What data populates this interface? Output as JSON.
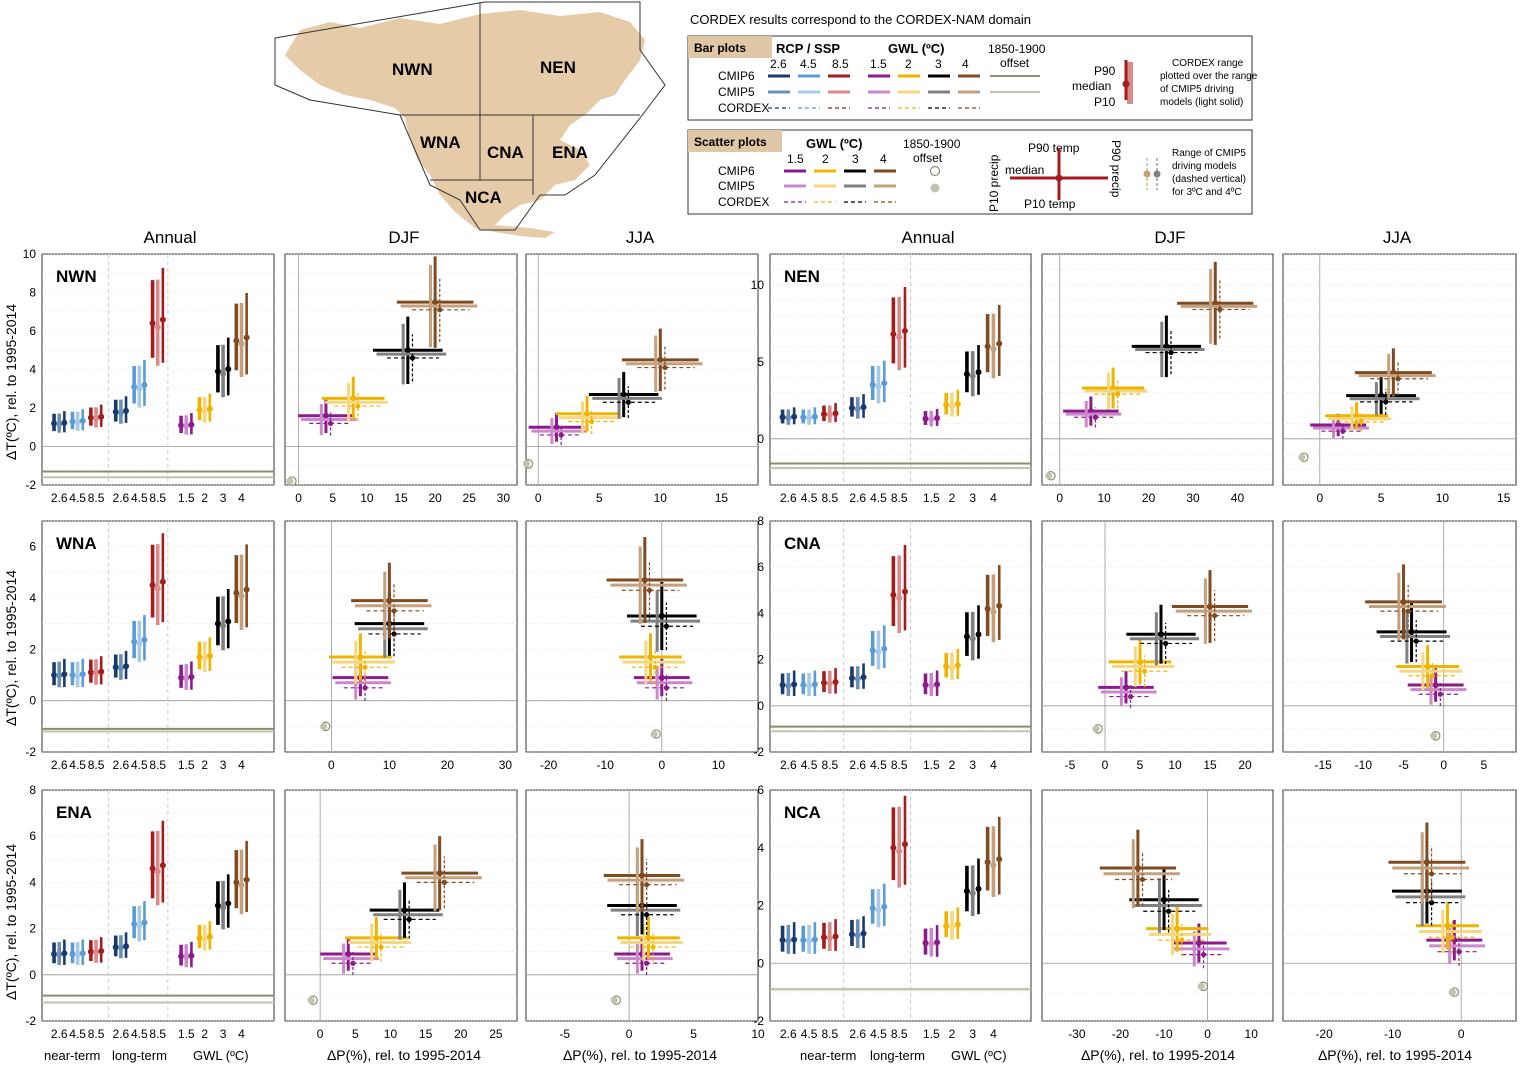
{
  "map": {
    "regions": [
      "NWN",
      "NEN",
      "WNA",
      "CNA",
      "ENA",
      "NCA"
    ],
    "land_color": "#e6cba8"
  },
  "legend": {
    "caption": "CORDEX results correspond to the CORDEX-NAM domain",
    "bar": {
      "tab": "Bar plots",
      "rcp_title": "RCP / SSP",
      "rcp_values": [
        "2.6",
        "4.5",
        "8.5"
      ],
      "gwl_title": "GWL (ºC)",
      "gwl_values": [
        "1.5",
        "2",
        "3",
        "4"
      ],
      "offset_label": [
        "1850-1900",
        "offset"
      ],
      "rows": [
        "CMIP6",
        "CMIP5",
        "CORDEX"
      ],
      "p90": "P90",
      "median": "median",
      "p10": "P10",
      "note": [
        "CORDEX range",
        "plotted over the range",
        "of CMIP5 driving",
        "models (light solid)"
      ]
    },
    "scatter": {
      "tab": "Scatter plots",
      "gwl_title": "GWL (ºC)",
      "gwl_values": [
        "1.5",
        "2",
        "3",
        "4"
      ],
      "offset_label": [
        "1850-1900",
        "offset"
      ],
      "rows": [
        "CMIP6",
        "CMIP5",
        "CORDEX"
      ],
      "p90_temp": "P90 temp",
      "median": "median",
      "p10_temp": "P10 temp",
      "p10_precip": "P10 precip",
      "p90_precip": "P90 precip",
      "note": [
        "Range of CMIP5",
        "driving models",
        "(dashed vertical)",
        "for 3ºC and 4ºC"
      ]
    }
  },
  "colors": {
    "rcp26_cmip6": "#1a3a6b",
    "rcp26_cmip5": "#6a8fb8",
    "rcp45_cmip6": "#5b9bd5",
    "rcp45_cmip5": "#a8c8e8",
    "rcp85_cmip6": "#a51c1c",
    "rcp85_cmip5": "#d98a8a",
    "gwl15_cmip6": "#8b1a8b",
    "gwl15_cmip5": "#cc88cc",
    "gwl2_cmip6": "#f0b400",
    "gwl2_cmip5": "#f6d680",
    "gwl3_cmip6": "#000000",
    "gwl3_cmip5": "#808080",
    "gwl4_cmip6": "#7f4b22",
    "gwl4_cmip5": "#c4a07c",
    "offset_cmip6": "#8a8d6e",
    "offset_cmip5": "#c2c4ad"
  },
  "column_titles": [
    "Annual",
    "DJF",
    "JJA",
    "Annual",
    "DJF",
    "JJA"
  ],
  "bar_x_ticks": [
    "2.6",
    "4.5",
    "8.5",
    "2.6",
    "4.5",
    "8.5",
    "1.5",
    "2",
    "3",
    "4"
  ],
  "bar_x_bottom": [
    "near-term",
    "long-term",
    "GWL (ºC)"
  ],
  "y_axis_label": "ΔT(ºC), rel. to 1995-2014",
  "x_axis_label": "ΔP(%), rel. to 1995-2014",
  "chart_data": [
    {
      "type": "bar",
      "region": "NWN",
      "season": "Annual",
      "ylim": [
        -2,
        10
      ],
      "yticks": [
        -2,
        0,
        2,
        4,
        6,
        8,
        10
      ],
      "medians": [
        1.2,
        1.3,
        1.5,
        1.8,
        3.1,
        6.4,
        1.1,
        1.9,
        3.9,
        5.5
      ],
      "offset": [
        -1.3,
        -1.6
      ]
    },
    {
      "type": "scatter",
      "region": "NWN",
      "season": "DJF",
      "xlim": [
        -2,
        32
      ],
      "xticks": [
        0,
        5,
        10,
        15,
        20,
        25,
        30
      ],
      "ylim": [
        -2,
        10
      ],
      "points": [
        {
          "gwl": "1.5",
          "x": 4,
          "y": 1.6
        },
        {
          "gwl": "2",
          "x": 8,
          "y": 2.5
        },
        {
          "gwl": "3",
          "x": 16,
          "y": 5.0
        },
        {
          "gwl": "4",
          "x": 20,
          "y": 7.5
        }
      ],
      "offset": {
        "x": -1,
        "y": -1.8
      }
    },
    {
      "type": "scatter",
      "region": "NWN",
      "season": "JJA",
      "xlim": [
        -1,
        18
      ],
      "xticks": [
        0,
        5,
        10,
        15
      ],
      "ylim": [
        -2,
        10
      ],
      "points": [
        {
          "gwl": "1.5",
          "x": 1.5,
          "y": 1.0
        },
        {
          "gwl": "2",
          "x": 4,
          "y": 1.7
        },
        {
          "gwl": "3",
          "x": 7,
          "y": 2.7
        },
        {
          "gwl": "4",
          "x": 10,
          "y": 4.5
        }
      ],
      "offset": {
        "x": -0.8,
        "y": -0.9
      }
    },
    {
      "type": "bar",
      "region": "NEN",
      "season": "Annual",
      "ylim": [
        -3,
        12
      ],
      "yticks": [
        0,
        5,
        10
      ],
      "medians": [
        1.4,
        1.4,
        1.6,
        2.0,
        3.5,
        6.8,
        1.3,
        2.2,
        4.2,
        6.0
      ],
      "offset": [
        -1.6,
        -1.9
      ]
    },
    {
      "type": "scatter",
      "region": "NEN",
      "season": "DJF",
      "xlim": [
        -4,
        48
      ],
      "xticks": [
        0,
        10,
        20,
        30,
        40
      ],
      "ylim": [
        -3,
        12
      ],
      "points": [
        {
          "gwl": "1.5",
          "x": 7,
          "y": 1.8
        },
        {
          "gwl": "2",
          "x": 12,
          "y": 3.3
        },
        {
          "gwl": "3",
          "x": 24,
          "y": 6.0
        },
        {
          "gwl": "4",
          "x": 35,
          "y": 8.8
        }
      ],
      "offset": {
        "x": -2,
        "y": -2.4
      }
    },
    {
      "type": "scatter",
      "region": "NEN",
      "season": "JJA",
      "xlim": [
        -3,
        16
      ],
      "xticks": [
        0,
        5,
        10,
        15
      ],
      "ylim": [
        -3,
        12
      ],
      "points": [
        {
          "gwl": "1.5",
          "x": 1.5,
          "y": 0.9
        },
        {
          "gwl": "2",
          "x": 3,
          "y": 1.5
        },
        {
          "gwl": "3",
          "x": 5,
          "y": 2.8
        },
        {
          "gwl": "4",
          "x": 6,
          "y": 4.3
        }
      ],
      "offset": {
        "x": -1.3,
        "y": -1.2
      }
    },
    {
      "type": "bar",
      "region": "WNA",
      "season": "Annual",
      "ylim": [
        -2,
        7
      ],
      "yticks": [
        -2,
        0,
        2,
        4,
        6
      ],
      "medians": [
        1.0,
        1.0,
        1.1,
        1.3,
        2.3,
        4.5,
        0.9,
        1.7,
        3.0,
        4.2
      ],
      "offset": [
        -1.1,
        -1.2
      ]
    },
    {
      "type": "scatter",
      "region": "WNA",
      "season": "DJF",
      "xlim": [
        -8,
        32
      ],
      "xticks": [
        0,
        10,
        20,
        30
      ],
      "ylim": [
        -2,
        7
      ],
      "points": [
        {
          "gwl": "1.5",
          "x": 5,
          "y": 0.9
        },
        {
          "gwl": "2",
          "x": 5,
          "y": 1.7
        },
        {
          "gwl": "3",
          "x": 10,
          "y": 3.0
        },
        {
          "gwl": "4",
          "x": 10,
          "y": 3.9
        }
      ],
      "offset": {
        "x": -1,
        "y": -1.0
      }
    },
    {
      "type": "scatter",
      "region": "WNA",
      "season": "JJA",
      "xlim": [
        -24,
        17
      ],
      "xticks": [
        -20,
        -10,
        0,
        10
      ],
      "ylim": [
        -2,
        7
      ],
      "points": [
        {
          "gwl": "1.5",
          "x": 0,
          "y": 0.9
        },
        {
          "gwl": "2",
          "x": -2,
          "y": 1.7
        },
        {
          "gwl": "3",
          "x": 0,
          "y": 3.3
        },
        {
          "gwl": "4",
          "x": -3,
          "y": 4.7
        }
      ],
      "offset": {
        "x": -1,
        "y": -1.3
      }
    },
    {
      "type": "bar",
      "region": "CNA",
      "season": "Annual",
      "ylim": [
        -2,
        8
      ],
      "yticks": [
        -2,
        0,
        2,
        4,
        6,
        8
      ],
      "medians": [
        0.9,
        0.9,
        1.0,
        1.2,
        2.4,
        4.8,
        0.9,
        1.7,
        3.0,
        4.2
      ],
      "offset": [
        -0.9,
        -1.1
      ]
    },
    {
      "type": "scatter",
      "region": "CNA",
      "season": "DJF",
      "xlim": [
        -9,
        24
      ],
      "xticks": [
        -5,
        0,
        5,
        10,
        15,
        20
      ],
      "ylim": [
        -2,
        8
      ],
      "points": [
        {
          "gwl": "1.5",
          "x": 3,
          "y": 0.8
        },
        {
          "gwl": "2",
          "x": 5,
          "y": 1.9
        },
        {
          "gwl": "3",
          "x": 8,
          "y": 3.1
        },
        {
          "gwl": "4",
          "x": 15,
          "y": 4.3
        }
      ],
      "offset": {
        "x": -1,
        "y": -1.0
      }
    },
    {
      "type": "scatter",
      "region": "CNA",
      "season": "JJA",
      "xlim": [
        -20,
        9
      ],
      "xticks": [
        -15,
        -10,
        -5,
        0,
        5
      ],
      "ylim": [
        -2,
        8
      ],
      "points": [
        {
          "gwl": "1.5",
          "x": -1,
          "y": 0.9
        },
        {
          "gwl": "2",
          "x": -2,
          "y": 1.7
        },
        {
          "gwl": "3",
          "x": -4,
          "y": 3.2
        },
        {
          "gwl": "4",
          "x": -5,
          "y": 4.5
        }
      ],
      "offset": {
        "x": -1,
        "y": -1.3
      }
    },
    {
      "type": "bar",
      "region": "ENA",
      "season": "Annual",
      "ylim": [
        -2,
        8
      ],
      "yticks": [
        -2,
        0,
        2,
        4,
        6,
        8
      ],
      "medians": [
        0.9,
        0.9,
        1.0,
        1.2,
        2.2,
        4.6,
        0.8,
        1.6,
        3.0,
        4.0
      ],
      "offset": [
        -0.9,
        -1.2
      ]
    },
    {
      "type": "scatter",
      "region": "ENA",
      "season": "DJF",
      "xlim": [
        -5,
        28
      ],
      "xticks": [
        0,
        5,
        10,
        15,
        20,
        25
      ],
      "ylim": [
        -2,
        8
      ],
      "points": [
        {
          "gwl": "1.5",
          "x": 4,
          "y": 0.9
        },
        {
          "gwl": "2",
          "x": 8,
          "y": 1.6
        },
        {
          "gwl": "3",
          "x": 12,
          "y": 2.8
        },
        {
          "gwl": "4",
          "x": 17,
          "y": 4.4
        }
      ],
      "offset": {
        "x": -1,
        "y": -1.1
      }
    },
    {
      "type": "scatter",
      "region": "ENA",
      "season": "JJA",
      "xlim": [
        -8,
        10
      ],
      "xticks": [
        -5,
        0,
        5,
        10
      ],
      "ylim": [
        -2,
        8
      ],
      "points": [
        {
          "gwl": "1.5",
          "x": 1,
          "y": 0.9
        },
        {
          "gwl": "2",
          "x": 1.5,
          "y": 1.6
        },
        {
          "gwl": "3",
          "x": 1,
          "y": 3.0
        },
        {
          "gwl": "4",
          "x": 1,
          "y": 4.3
        }
      ],
      "offset": {
        "x": -1,
        "y": -1.1
      }
    },
    {
      "type": "bar",
      "region": "NCA",
      "season": "Annual",
      "ylim": [
        -2,
        6
      ],
      "yticks": [
        -2,
        0,
        2,
        4,
        6
      ],
      "medians": [
        0.8,
        0.8,
        0.9,
        1.0,
        1.9,
        4.0,
        0.7,
        1.3,
        2.5,
        3.5
      ],
      "offset": [
        -0.9,
        -0.9
      ]
    },
    {
      "type": "scatter",
      "region": "NCA",
      "season": "DJF",
      "xlim": [
        -38,
        15
      ],
      "xticks": [
        -30,
        -20,
        -10,
        0,
        10
      ],
      "ylim": [
        -2,
        6
      ],
      "points": [
        {
          "gwl": "1.5",
          "x": -2,
          "y": 0.7
        },
        {
          "gwl": "2",
          "x": -7,
          "y": 1.2
        },
        {
          "gwl": "3",
          "x": -10,
          "y": 2.2
        },
        {
          "gwl": "4",
          "x": -16,
          "y": 3.3
        }
      ],
      "offset": {
        "x": -1,
        "y": -0.8
      }
    },
    {
      "type": "scatter",
      "region": "NCA",
      "season": "JJA",
      "xlim": [
        -26,
        8
      ],
      "xticks": [
        -20,
        -10,
        0
      ],
      "ylim": [
        -2,
        6
      ],
      "points": [
        {
          "gwl": "1.5",
          "x": -1,
          "y": 0.8
        },
        {
          "gwl": "2",
          "x": -2,
          "y": 1.3
        },
        {
          "gwl": "3",
          "x": -5,
          "y": 2.5
        },
        {
          "gwl": "4",
          "x": -5,
          "y": 3.5
        }
      ],
      "offset": {
        "x": -1,
        "y": -1.0
      }
    }
  ]
}
